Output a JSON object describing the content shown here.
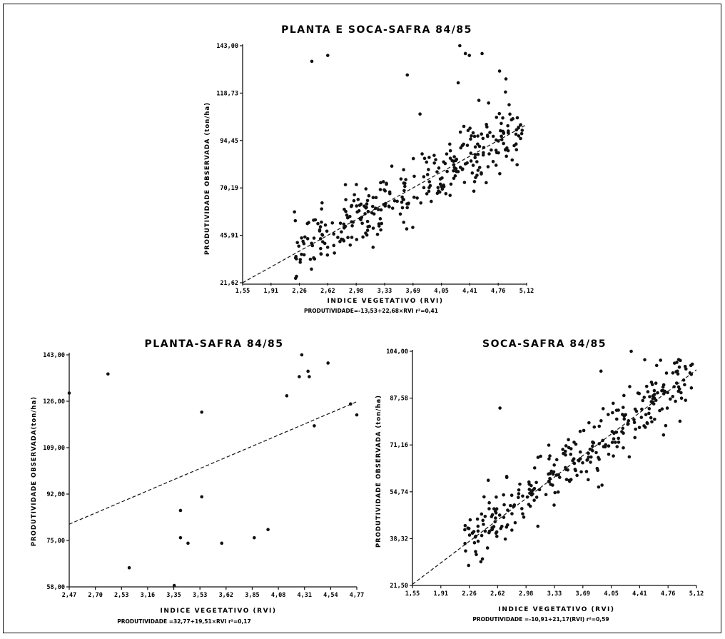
{
  "chart_data": [
    {
      "type": "scatter",
      "title": "PLANTA E SOCA-SAFRA 84/85",
      "xlabel": "INDICE VEGETATIVO (RVI)",
      "ylabel": "PRODUTIVIDADE OBSERVADA (ton/ha)",
      "equation": "PRODUTIVIDADE=-13,53+22,68×RVI  r²=0,41",
      "x_ticks": [
        "1,55",
        "1,91",
        "2,26",
        "2,62",
        "2,98",
        "3,33",
        "3,69",
        "4,05",
        "4,41",
        "4,76",
        "5,12"
      ],
      "y_ticks": [
        "21,62",
        "45,91",
        "70,19",
        "94,45",
        "118,73",
        "143,00"
      ],
      "xlim": [
        1.55,
        5.12
      ],
      "ylim": [
        21.62,
        143.0
      ],
      "regression": {
        "intercept": -13.53,
        "slope": 22.68
      },
      "highlight_points": [
        [
          3.62,
          128
        ],
        [
          4.26,
          124
        ],
        [
          2.42,
          135
        ],
        [
          2.62,
          138
        ],
        [
          4.28,
          143
        ],
        [
          4.35,
          139
        ],
        [
          4.4,
          138
        ],
        [
          4.56,
          139
        ],
        [
          4.78,
          130
        ],
        [
          4.86,
          126
        ],
        [
          3.78,
          108
        ],
        [
          4.52,
          115
        ],
        [
          4.82,
          106
        ]
      ],
      "sample_points": 320
    },
    {
      "type": "scatter",
      "title": "PLANTA-SAFRA 84/85",
      "xlabel": "INDICE VEGETATIVO (RVI)",
      "ylabel": "PRODUTIVIDADE OBSERVADA(ton/ha)",
      "equation": "PRODUTIVIDADE =32,77+19,51×RVI  r²=0,17",
      "x_ticks": [
        "2,47",
        "2,70",
        "2,53",
        "3,16",
        "3,35",
        "3,53",
        "3,62",
        "3,85",
        "4,08",
        "4,31",
        "4,54",
        "4,77"
      ],
      "y_ticks": [
        "58,00",
        "75,00",
        "92,00",
        "109,00",
        "126,00",
        "143,00"
      ],
      "xlim": [
        2.47,
        4.77
      ],
      "ylim": [
        58.0,
        143.0
      ],
      "regression": {
        "intercept": 32.77,
        "slope": 19.51
      },
      "points": [
        [
          2.47,
          129
        ],
        [
          2.78,
          136
        ],
        [
          2.95,
          65
        ],
        [
          3.31,
          58.5
        ],
        [
          3.36,
          86
        ],
        [
          3.36,
          76
        ],
        [
          3.42,
          74
        ],
        [
          3.53,
          122
        ],
        [
          3.53,
          91
        ],
        [
          3.69,
          74
        ],
        [
          3.95,
          76
        ],
        [
          4.06,
          79
        ],
        [
          4.21,
          128
        ],
        [
          4.31,
          135
        ],
        [
          4.33,
          143
        ],
        [
          4.38,
          137
        ],
        [
          4.39,
          135
        ],
        [
          4.43,
          117
        ],
        [
          4.54,
          140
        ],
        [
          4.72,
          125
        ],
        [
          4.77,
          121
        ]
      ]
    },
    {
      "type": "scatter",
      "title": "SOCA-SAFRA 84/85",
      "xlabel": "INDICE VEGETATIVO (RVI)",
      "ylabel": "PRODUTIVIDADE OBSERVADA (ton/ha)",
      "equation": "PRODUTIVIDADE =-10,91+21,17(RVI)  r²=0,59",
      "x_ticks": [
        "1,55",
        "1,91",
        "2,26",
        "2,62",
        "2,98",
        "3,33",
        "3,69",
        "4,05",
        "4,41",
        "4,76",
        "5,12"
      ],
      "y_ticks": [
        "21,50",
        "38,32",
        "54,74",
        "71,16",
        "87,58",
        "104,00"
      ],
      "xlim": [
        1.55,
        5.12
      ],
      "ylim": [
        21.5,
        104.0
      ],
      "regression": {
        "intercept": -10.91,
        "slope": 21.17
      },
      "highlight_points": [
        [
          4.3,
          104
        ],
        [
          4.47,
          101
        ],
        [
          4.62,
          99
        ],
        [
          4.88,
          97
        ],
        [
          5.05,
          99
        ],
        [
          2.65,
          84
        ],
        [
          3.92,
          97
        ]
      ],
      "sample_points": 300
    }
  ]
}
